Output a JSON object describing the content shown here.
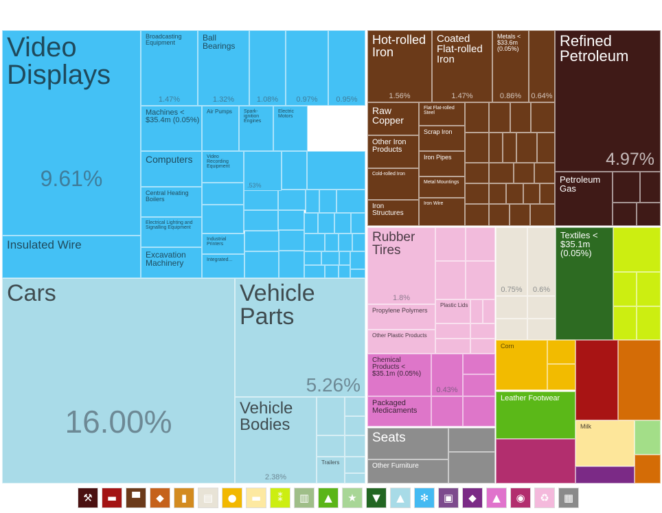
{
  "chart_data": {
    "type": "treemap",
    "title": "",
    "items": [
      {
        "label": "Video Displays",
        "group": "machines",
        "percent": "9.61%"
      },
      {
        "label": "Insulated Wire",
        "group": "machines"
      },
      {
        "label": "Broadcasting Equipment",
        "group": "machines",
        "percent": "1.47%"
      },
      {
        "label": "Ball Bearings",
        "group": "machines",
        "percent": "1.32%"
      },
      {
        "label": "",
        "group": "machines",
        "percent": "1.08%"
      },
      {
        "label": "",
        "group": "machines",
        "percent": "0.97%"
      },
      {
        "label": "",
        "group": "machines",
        "percent": "0.95%"
      },
      {
        "label": "Machines < $35.4m (0.05%)",
        "group": "machines"
      },
      {
        "label": "Air Pumps",
        "group": "machines"
      },
      {
        "label": "Spark-ignition Engines",
        "group": "machines"
      },
      {
        "label": "Electric Motors",
        "group": "machines"
      },
      {
        "label": "Computers",
        "group": "machines"
      },
      {
        "label": "Video Recording Equipment",
        "group": "machines"
      },
      {
        "label": "",
        "group": "machines",
        "percent": ".53%"
      },
      {
        "label": "Central Heating Boilers",
        "group": "machines"
      },
      {
        "label": "Electrical Lighting and Signalling Equipment",
        "group": "machines"
      },
      {
        "label": "Industrial Printers",
        "group": "machines"
      },
      {
        "label": "Excavation Machinery",
        "group": "machines"
      },
      {
        "label": "Integrated...",
        "group": "machines"
      },
      {
        "label": "Cars",
        "group": "transportation",
        "percent": "16.00%"
      },
      {
        "label": "Vehicle Parts",
        "group": "transportation",
        "percent": "5.26%"
      },
      {
        "label": "Vehicle Bodies",
        "group": "transportation",
        "percent": "2.38%"
      },
      {
        "label": "Trailers",
        "group": "transportation"
      },
      {
        "label": "Hot-rolled Iron",
        "group": "metals",
        "percent": "1.56%"
      },
      {
        "label": "Coated Flat-rolled Iron",
        "group": "metals",
        "percent": "1.47%"
      },
      {
        "label": "Metals < $33.6m (0.05%)",
        "group": "metals",
        "percent": "0.86%"
      },
      {
        "label": "",
        "group": "metals",
        "percent": "0.64%"
      },
      {
        "label": "Raw Copper",
        "group": "metals"
      },
      {
        "label": "Flat Flat-rolled Steel",
        "group": "metals"
      },
      {
        "label": "Scrap Iron",
        "group": "metals"
      },
      {
        "label": "Other Iron Products",
        "group": "metals"
      },
      {
        "label": "Iron Pipes",
        "group": "metals"
      },
      {
        "label": "Cold-rolled Iron",
        "group": "metals"
      },
      {
        "label": "Metal Mountings",
        "group": "metals"
      },
      {
        "label": "Iron Structures",
        "group": "metals"
      },
      {
        "label": "Iron Wire",
        "group": "metals"
      },
      {
        "label": "Refined Petroleum",
        "group": "minerals",
        "percent": "4.97%"
      },
      {
        "label": "Petroleum Gas",
        "group": "minerals"
      },
      {
        "label": "Rubber Tires",
        "group": "plastics",
        "percent": "1.8%"
      },
      {
        "label": "Propylene Polymers",
        "group": "plastics"
      },
      {
        "label": "Plastic Lids",
        "group": "plastics"
      },
      {
        "label": "Other Plastic Products",
        "group": "plastics"
      },
      {
        "label": "Chemical Products < $35.1m (0.05%)",
        "group": "chemicals"
      },
      {
        "label": "",
        "group": "chemicals",
        "percent": "0.43%"
      },
      {
        "label": "Packaged Medicaments",
        "group": "chemicals"
      },
      {
        "label": "Seats",
        "group": "misc"
      },
      {
        "label": "Other Furniture",
        "group": "misc"
      },
      {
        "label": "",
        "group": "paper",
        "percent": "0.75%"
      },
      {
        "label": "",
        "group": "paper",
        "percent": "0.6%"
      },
      {
        "label": "Textiles < $35.1m (0.05%)",
        "group": "textiles"
      },
      {
        "label": "Corn",
        "group": "vegetable"
      },
      {
        "label": "Leather Footwear",
        "group": "footwear"
      },
      {
        "label": "Milk",
        "group": "animal"
      }
    ]
  },
  "legend": [
    {
      "icon": "pickaxe-icon",
      "glyph": "⚒",
      "color": "#4a1010"
    },
    {
      "icon": "metal-bar-icon",
      "glyph": "▬",
      "color": "#a31414"
    },
    {
      "icon": "anvil-icon",
      "glyph": "▀",
      "color": "#6b3a1a"
    },
    {
      "icon": "stone-icon",
      "glyph": "◆",
      "color": "#c5621c"
    },
    {
      "icon": "bottle-icon",
      "glyph": "▮",
      "color": "#d38b20"
    },
    {
      "icon": "scroll-icon",
      "glyph": "▤",
      "color": "#e8e3d6"
    },
    {
      "icon": "fruit-icon",
      "glyph": "●",
      "color": "#f2b800"
    },
    {
      "icon": "animal-icon",
      "glyph": "▬",
      "color": "#fde9a1"
    },
    {
      "icon": "wheat-icon",
      "glyph": "⁑",
      "color": "#ccee11"
    },
    {
      "icon": "building-icon",
      "glyph": "▥",
      "color": "#9fbe88"
    },
    {
      "icon": "shoe-icon",
      "glyph": "▲",
      "color": "#5bb518"
    },
    {
      "icon": "star-icon",
      "glyph": "★",
      "color": "#a8d696"
    },
    {
      "icon": "shirt-icon",
      "glyph": "▼",
      "color": "#226622"
    },
    {
      "icon": "road-icon",
      "glyph": "▲",
      "color": "#a8dbe7"
    },
    {
      "icon": "gears-icon",
      "glyph": "✻",
      "color": "#44baf2"
    },
    {
      "icon": "frame-icon",
      "glyph": "▣",
      "color": "#7d4b8d"
    },
    {
      "icon": "diamond-icon",
      "glyph": "◆",
      "color": "#7b2a86"
    },
    {
      "icon": "flask-icon",
      "glyph": "▲",
      "color": "#e072cc"
    },
    {
      "icon": "gauge-icon",
      "glyph": "◉",
      "color": "#b22e6e"
    },
    {
      "icon": "recycle-icon",
      "glyph": "♻",
      "color": "#f4b9dc"
    },
    {
      "icon": "box-icon",
      "glyph": "▦",
      "color": "#8a8a8a"
    }
  ]
}
